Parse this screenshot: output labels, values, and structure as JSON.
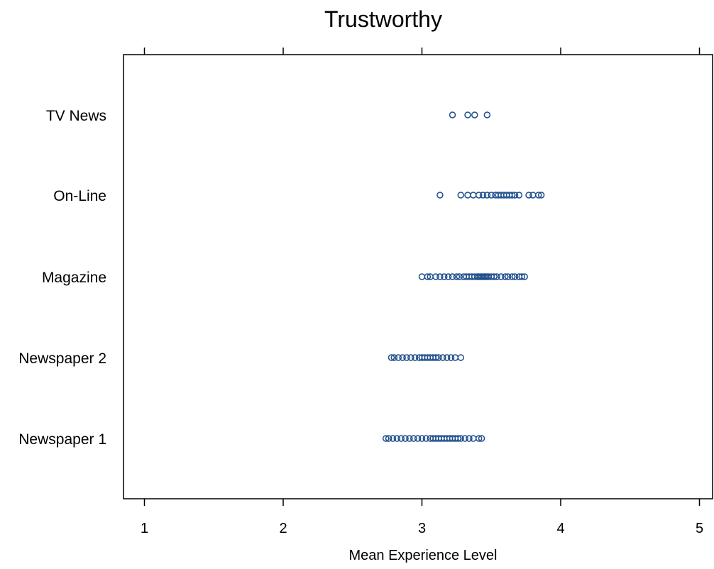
{
  "chart_data": {
    "type": "scatter",
    "title": "Trustworthy",
    "xlabel": "Mean Experience Level",
    "ylabel": "",
    "xlim": [
      0.85,
      5.0
    ],
    "x_ticks": [
      1,
      2,
      3,
      4,
      5
    ],
    "x_tick_labels": [
      "1",
      "2",
      "3",
      "4",
      "5"
    ],
    "categories": [
      "TV News",
      "On-Line",
      "Magazine",
      "Newspaper 2",
      "Newspaper 1"
    ],
    "grid": false,
    "legend": "none",
    "marker": "open-circle",
    "point_color": "#1F4E8C",
    "series": [
      {
        "category": "TV News",
        "values": [
          3.22,
          3.33,
          3.38,
          3.47
        ]
      },
      {
        "category": "On-Line",
        "values": [
          3.13,
          3.28,
          3.33,
          3.37,
          3.41,
          3.44,
          3.47,
          3.5,
          3.53,
          3.55,
          3.57,
          3.59,
          3.61,
          3.63,
          3.65,
          3.67,
          3.7,
          3.77,
          3.8,
          3.84,
          3.86
        ]
      },
      {
        "category": "Magazine",
        "values": [
          3.0,
          3.04,
          3.06,
          3.1,
          3.13,
          3.16,
          3.19,
          3.22,
          3.25,
          3.27,
          3.3,
          3.32,
          3.34,
          3.36,
          3.38,
          3.4,
          3.41,
          3.42,
          3.43,
          3.44,
          3.45,
          3.46,
          3.47,
          3.48,
          3.5,
          3.52,
          3.54,
          3.57,
          3.6,
          3.62,
          3.65,
          3.67,
          3.7,
          3.72,
          3.74
        ]
      },
      {
        "category": "Newspaper 2",
        "values": [
          2.78,
          2.8,
          2.83,
          2.86,
          2.89,
          2.92,
          2.95,
          2.98,
          3.0,
          3.02,
          3.04,
          3.06,
          3.08,
          3.1,
          3.12,
          3.15,
          3.18,
          3.21,
          3.24,
          3.28
        ]
      },
      {
        "category": "Newspaper 1",
        "values": [
          2.74,
          2.76,
          2.79,
          2.82,
          2.85,
          2.88,
          2.91,
          2.94,
          2.97,
          3.0,
          3.03,
          3.06,
          3.08,
          3.1,
          3.12,
          3.14,
          3.16,
          3.18,
          3.2,
          3.22,
          3.24,
          3.26,
          3.28,
          3.31,
          3.34,
          3.37,
          3.41,
          3.43
        ]
      }
    ]
  }
}
